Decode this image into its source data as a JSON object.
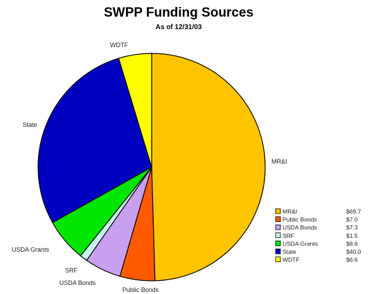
{
  "chart_data": {
    "type": "pie",
    "title": "SWPP Funding Sources",
    "subtitle": "As of 12/31/03",
    "categories": [
      "MR&I",
      "Public Bonds",
      "USDA Bonds",
      "SRF",
      "USDA Grants",
      "State",
      "WDTF"
    ],
    "values": [
      69.7,
      7.0,
      7.3,
      1.5,
      8.6,
      40.0,
      6.6
    ],
    "value_labels": [
      "$69.7",
      "$7.0",
      "$7.3",
      "$1.5",
      "$8.6",
      "$40.0",
      "$6.6"
    ],
    "slice_labels": [
      "MR&I",
      "Public Bonds",
      "USDA Bonds",
      "SRF",
      "USDA Grants",
      "State",
      "WDTF"
    ],
    "colors": [
      "#FFC400",
      "#FF5A00",
      "#C9A0F0",
      "#C8F5F0",
      "#00E600",
      "#0000C0",
      "#FFFF00"
    ],
    "legend_position": "bottom-right"
  }
}
